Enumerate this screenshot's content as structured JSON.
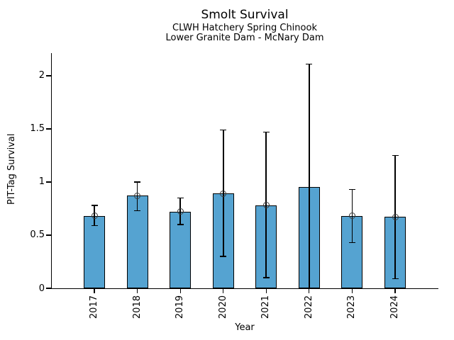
{
  "header": {
    "title": "Smolt Survival",
    "subtitle1": "CLWH Hatchery Spring Chinook",
    "subtitle2": "Lower Granite Dam - McNary Dam"
  },
  "chart_data": {
    "type": "bar",
    "title": "Smolt Survival",
    "subtitle": [
      "CLWH Hatchery Spring Chinook",
      "Lower Granite Dam - McNary Dam"
    ],
    "xlabel": "Year",
    "ylabel": "PIT-Tag Survival",
    "categories": [
      "2017",
      "2018",
      "2019",
      "2020",
      "2021",
      "2022",
      "2023",
      "2024"
    ],
    "values": [
      0.68,
      0.87,
      0.72,
      0.89,
      0.78,
      0.95,
      0.68,
      0.67
    ],
    "error_low": [
      0.59,
      0.73,
      0.6,
      0.3,
      0.1,
      0.0,
      0.43,
      0.09
    ],
    "error_high": [
      0.78,
      1.0,
      0.85,
      1.49,
      1.47,
      2.11,
      0.93,
      1.25
    ],
    "point_marker_shown": [
      true,
      true,
      true,
      true,
      true,
      false,
      true,
      true
    ],
    "ytick_labels": [
      "0",
      "0.5",
      "1",
      "1.5",
      "2"
    ],
    "ytick_values": [
      0,
      0.5,
      1,
      1.5,
      2
    ],
    "ylim": [
      0,
      2.213
    ],
    "grid": false,
    "legend": "none",
    "bar_color": "#55a3d1",
    "bar_edge_color": "#000000",
    "error_color": "#000000",
    "marker_edge_color": "#3a3a3a",
    "text_color": "#000000"
  }
}
